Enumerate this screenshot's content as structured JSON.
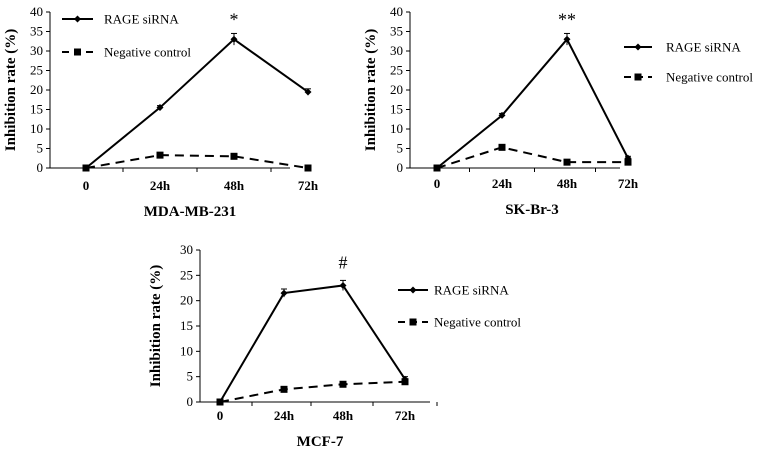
{
  "chart_data": [
    {
      "type": "line",
      "title": "MDA-MB-231",
      "ylabel": "Inhibition rate (%)",
      "xlabel": "",
      "categories": [
        "0",
        "24h",
        "48h",
        "72h"
      ],
      "ylim": [
        0,
        40
      ],
      "yticks": [
        "0",
        "5",
        "10",
        "15",
        "20",
        "25",
        "30",
        "35",
        "40"
      ],
      "legend_position": "top-right",
      "annotation": "*",
      "series": [
        {
          "name": "RAGE siRNA",
          "style": "solid",
          "marker": "diamond",
          "values": [
            0,
            15.5,
            33,
            19.5
          ],
          "errors": [
            0,
            0.5,
            1.5,
            0.8
          ]
        },
        {
          "name": "Negative control",
          "style": "dashed",
          "marker": "square",
          "values": [
            0,
            3.3,
            3,
            0
          ],
          "errors": [
            0,
            0,
            0,
            0
          ]
        }
      ]
    },
    {
      "type": "line",
      "title": "SK-Br-3",
      "ylabel": "Inhibition rate (%)",
      "xlabel": "",
      "categories": [
        "0",
        "24h",
        "48h",
        "72h"
      ],
      "ylim": [
        0,
        40
      ],
      "yticks": [
        "0",
        "5",
        "10",
        "15",
        "20",
        "25",
        "30",
        "35",
        "40"
      ],
      "legend_position": "right",
      "annotation": "**",
      "series": [
        {
          "name": "RAGE siRNA",
          "style": "solid",
          "marker": "diamond",
          "values": [
            0,
            13.5,
            33,
            2.5
          ],
          "errors": [
            0,
            0.5,
            1.5,
            0.5
          ]
        },
        {
          "name": "Negative control",
          "style": "dashed",
          "marker": "square",
          "values": [
            0,
            5.3,
            1.5,
            1.5
          ],
          "errors": [
            0,
            0,
            0,
            0
          ]
        }
      ]
    },
    {
      "type": "line",
      "title": "MCF-7",
      "ylabel": "Inhibition rate (%)",
      "xlabel": "",
      "categories": [
        "0",
        "24h",
        "48h",
        "72h"
      ],
      "ylim": [
        0,
        30
      ],
      "yticks": [
        "0",
        "5",
        "10",
        "15",
        "20",
        "25",
        "30"
      ],
      "legend_position": "right",
      "annotation": "#",
      "series": [
        {
          "name": "RAGE siRNA",
          "style": "solid",
          "marker": "diamond",
          "values": [
            0,
            21.5,
            23,
            4.5
          ],
          "errors": [
            0,
            0.8,
            1,
            0.5
          ]
        },
        {
          "name": "Negative control",
          "style": "dashed",
          "marker": "square",
          "values": [
            0,
            2.5,
            3.5,
            4
          ],
          "errors": [
            0,
            0,
            0,
            0
          ]
        }
      ]
    }
  ]
}
